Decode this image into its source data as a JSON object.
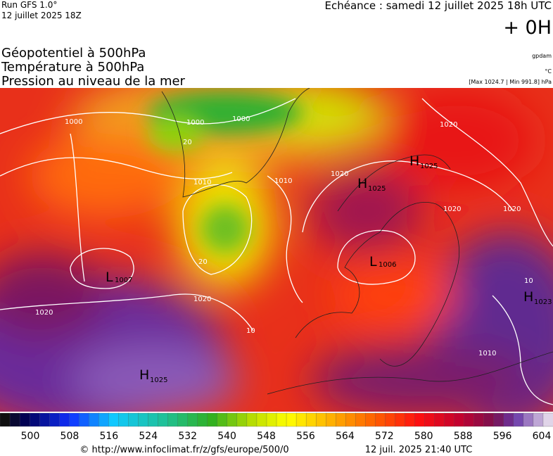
{
  "header": {
    "run": "Run GFS 1.0°",
    "run_date": "12 juillet 2025 18Z",
    "valid_time": "Echéance : samedi 12 juillet 2025 18h UTC",
    "offset": "+ 0H"
  },
  "titles": [
    "Géopotentiel à 500hPa",
    "Température à 500hPa",
    "Pression au niveau de la mer"
  ],
  "units": {
    "geopotential": "gpdam",
    "temperature": "°C",
    "pressure": "[Max 1024.7 | Min 991.8] hPa"
  },
  "pressure_centers": [
    {
      "label": "H",
      "value": "1025"
    },
    {
      "label": "H",
      "value": "1025"
    },
    {
      "label": "L",
      "value": "1006"
    },
    {
      "label": "L",
      "value": "1007"
    },
    {
      "label": "H",
      "value": "1023"
    },
    {
      "label": "H",
      "value": "1025"
    }
  ],
  "contour_labels": [
    "1000",
    "1000",
    "1000",
    "1010",
    "1010",
    "1020",
    "1020",
    "1020",
    "1020",
    "1020",
    "1020",
    "1010",
    "20",
    "20",
    "10",
    "10"
  ],
  "colorbar": {
    "labels": [
      500,
      508,
      516,
      524,
      532,
      540,
      548,
      556,
      564,
      572,
      580,
      588,
      596,
      604
    ]
  },
  "footer": {
    "source": "© http://www.infoclimat.fr/z/gfs/europe/500/0",
    "generated": "12 juil. 2025 21:40 UTC"
  }
}
